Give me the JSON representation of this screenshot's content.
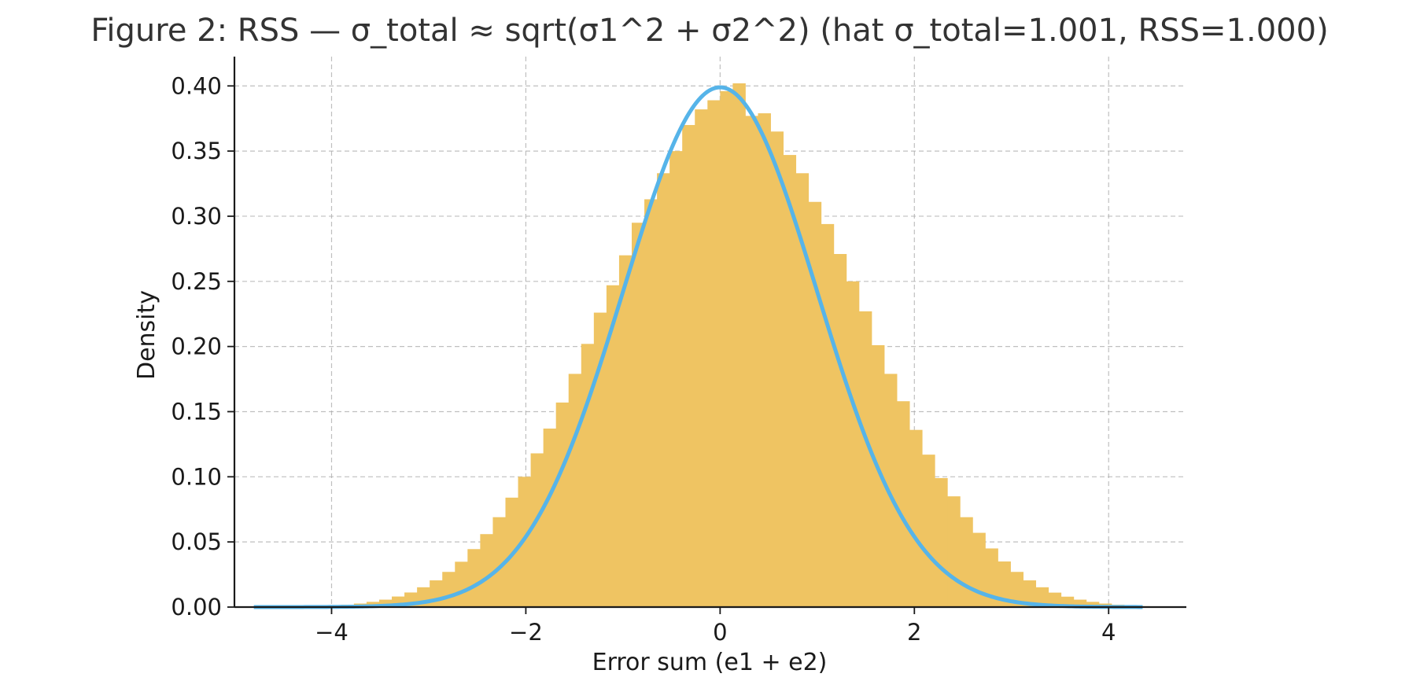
{
  "chart_data": {
    "type": "bar",
    "title": "Figure 2: RSS — σ_total ≈ sqrt(σ1^2 + σ2^2)  (hat σ_total=1.001, RSS=1.000)",
    "xlabel": "Error sum (e1 + e2)",
    "ylabel": "Density",
    "xlim": [
      -5.0,
      4.8
    ],
    "ylim": [
      0.0,
      0.4225
    ],
    "xticks": [
      -4,
      -2,
      0,
      2,
      4
    ],
    "xtick_labels": [
      "−4",
      "−2",
      "0",
      "2",
      "4"
    ],
    "yticks": [
      0.0,
      0.05,
      0.1,
      0.15,
      0.2,
      0.25,
      0.3,
      0.35,
      0.4
    ],
    "ytick_labels": [
      "0.00",
      "0.05",
      "0.10",
      "0.15",
      "0.20",
      "0.25",
      "0.30",
      "0.35",
      "0.40"
    ],
    "grid": true,
    "histogram": {
      "color": "#efc462",
      "bin_width": 0.13,
      "bin_start": -4.81,
      "values": [
        0.0001,
        0.0001,
        0.0002,
        0.0003,
        0.0005,
        0.0008,
        0.0012,
        0.0018,
        0.0027,
        0.004,
        0.0057,
        0.0081,
        0.0112,
        0.0152,
        0.0205,
        0.027,
        0.0348,
        0.0445,
        0.056,
        0.069,
        0.084,
        0.1,
        0.118,
        0.137,
        0.157,
        0.179,
        0.202,
        0.226,
        0.247,
        0.27,
        0.295,
        0.313,
        0.333,
        0.35,
        0.37,
        0.382,
        0.389,
        0.396,
        0.402,
        0.377,
        0.379,
        0.365,
        0.347,
        0.333,
        0.311,
        0.294,
        0.271,
        0.25,
        0.227,
        0.201,
        0.179,
        0.158,
        0.136,
        0.117,
        0.099,
        0.085,
        0.069,
        0.057,
        0.045,
        0.035,
        0.027,
        0.0205,
        0.0152,
        0.0111,
        0.008,
        0.0057,
        0.004,
        0.0027,
        0.0018,
        0.0012,
        0.0007,
        0.0004
      ]
    },
    "curve": {
      "color": "#56b4e9",
      "mu": 0.0,
      "sigma": 1.0,
      "x_range": [
        -4.8,
        4.35
      ]
    }
  }
}
